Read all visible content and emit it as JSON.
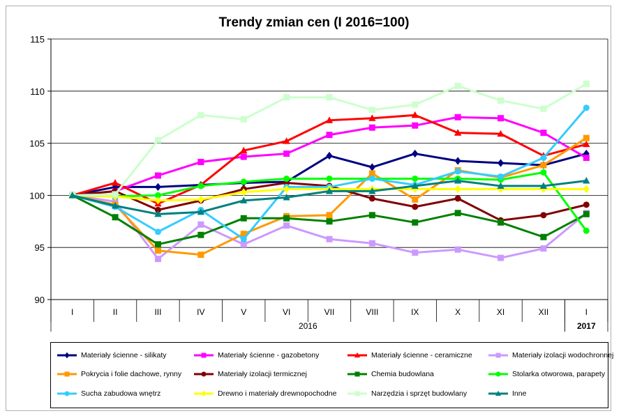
{
  "chart_data": {
    "type": "line",
    "title": "Trendy zmian cen (I 2016=100)",
    "xlabel": "",
    "ylabel": "",
    "ylim": [
      90,
      115
    ],
    "yticks": [
      90,
      95,
      100,
      105,
      110,
      115
    ],
    "grid": true,
    "legend_position": "bottom",
    "categories": [
      "I",
      "II",
      "III",
      "IV",
      "V",
      "VI",
      "VII",
      "VIII",
      "IX",
      "X",
      "XI",
      "XII",
      "I"
    ],
    "year_labels": [
      {
        "label": "2016",
        "from": 0,
        "to": 11
      },
      {
        "label": "2017",
        "from": 12,
        "to": 12
      }
    ],
    "series": [
      {
        "name": "Materiały ścienne - silikaty",
        "color": "#000080",
        "marker": "diamond",
        "values": [
          100,
          100.8,
          100.8,
          101.0,
          101.2,
          101.3,
          103.8,
          102.7,
          104.0,
          103.3,
          103.1,
          102.9,
          104.0
        ]
      },
      {
        "name": "Materiały ścienne - gazobetony",
        "color": "#ff00ff",
        "marker": "square",
        "values": [
          100,
          100.4,
          101.9,
          103.2,
          103.7,
          104.0,
          105.8,
          106.5,
          106.7,
          107.5,
          107.4,
          106.0,
          103.6
        ]
      },
      {
        "name": "Materiały ścienne - ceramiczne",
        "color": "#ff0000",
        "marker": "triangle",
        "values": [
          100,
          101.2,
          99.2,
          101.0,
          104.3,
          105.2,
          107.2,
          107.4,
          107.7,
          106.0,
          105.9,
          103.8,
          104.9
        ]
      },
      {
        "name": "Materiały izolacji wodochronnej",
        "color": "#cc99ff",
        "marker": "square",
        "values": [
          100,
          99.4,
          93.9,
          97.2,
          95.3,
          97.1,
          95.8,
          95.4,
          94.5,
          94.8,
          94.0,
          94.9,
          98.3
        ]
      },
      {
        "name": "Pokrycia i folie dachowe, rynny",
        "color": "#ff9900",
        "marker": "square",
        "values": [
          100,
          99.1,
          94.7,
          94.3,
          96.3,
          98.0,
          98.1,
          102.1,
          99.6,
          102.4,
          101.7,
          102.9,
          105.5
        ]
      },
      {
        "name": "Materiały izolacji termicznej",
        "color": "#800000",
        "marker": "circle",
        "values": [
          100,
          100.4,
          98.6,
          99.5,
          100.6,
          101.2,
          100.9,
          99.7,
          98.9,
          99.7,
          97.6,
          98.1,
          99.1
        ]
      },
      {
        "name": "Chemia budowlana",
        "color": "#008000",
        "marker": "square",
        "values": [
          100,
          97.9,
          95.3,
          96.2,
          97.8,
          97.8,
          97.5,
          98.1,
          97.4,
          98.3,
          97.4,
          96.0,
          98.2
        ]
      },
      {
        "name": "Stolarka otworowa, parapety",
        "color": "#00ff00",
        "marker": "circle",
        "values": [
          100,
          99.9,
          100.0,
          100.9,
          101.3,
          101.6,
          101.6,
          101.6,
          101.6,
          101.6,
          101.5,
          102.2,
          96.6
        ]
      },
      {
        "name": "Sucha zabudowa wnętrz",
        "color": "#33ccff",
        "marker": "circle",
        "values": [
          100,
          98.9,
          96.5,
          98.6,
          95.8,
          100.8,
          100.8,
          101.6,
          101.0,
          102.3,
          101.8,
          103.6,
          108.4
        ]
      },
      {
        "name": "Drewno i materiały drewnopochodne",
        "color": "#ffff00",
        "marker": "diamond",
        "values": [
          100,
          99.9,
          99.5,
          99.6,
          100.3,
          100.6,
          100.6,
          100.6,
          100.6,
          100.6,
          100.6,
          100.6,
          100.6
        ]
      },
      {
        "name": "Narzędzia i sprzęt budowlany",
        "color": "#ccffcc",
        "marker": "square",
        "values": [
          100,
          100.1,
          105.3,
          107.7,
          107.3,
          109.4,
          109.4,
          108.2,
          108.7,
          110.5,
          109.1,
          108.3,
          110.7
        ]
      },
      {
        "name": "Inne",
        "color": "#008080",
        "marker": "triangle",
        "values": [
          100,
          99.0,
          98.2,
          98.4,
          99.5,
          99.8,
          100.4,
          100.4,
          100.9,
          101.4,
          100.9,
          100.9,
          101.4
        ]
      }
    ]
  }
}
